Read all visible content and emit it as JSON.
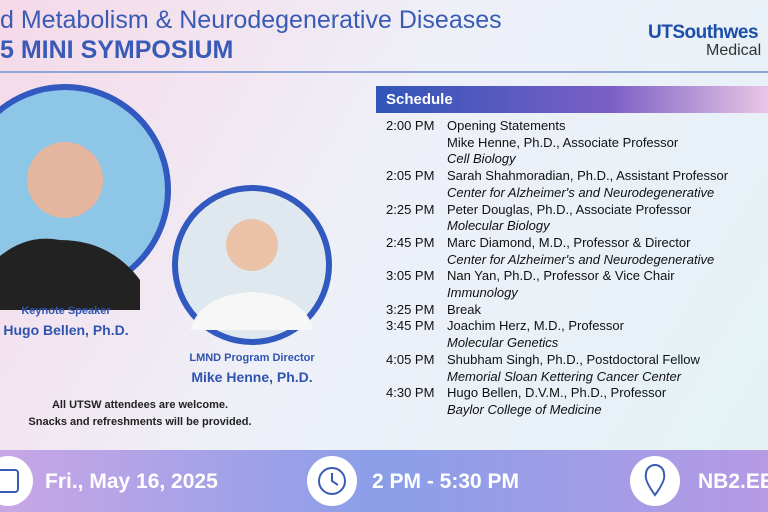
{
  "header": {
    "title_line1": "d Metabolism & Neurodegenerative Diseases",
    "title_line2": "5 MINI SYMPOSIUM",
    "logo_line1": "UTSouthwes",
    "logo_line2": "Medical"
  },
  "speakers": [
    {
      "role": "Keynote Speaker",
      "name": "Hugo Bellen, Ph.D."
    },
    {
      "role": "LMND Program Director",
      "name": "Mike Henne, Ph.D."
    }
  ],
  "notes": [
    "All UTSW attendees are welcome.",
    "Snacks and refreshments will be provided."
  ],
  "schedule": {
    "title": "Schedule",
    "rows": [
      {
        "time": "2:00 PM",
        "lines": [
          "Opening Statements",
          "Mike Henne, Ph.D., Associate Professor"
        ],
        "affiliation": "Cell Biology"
      },
      {
        "time": "2:05 PM",
        "lines": [
          "Sarah Shahmoradian, Ph.D., Assistant Professor"
        ],
        "affiliation": "Center for Alzheimer's and Neurodegenerative"
      },
      {
        "time": "2:25 PM",
        "lines": [
          "Peter Douglas, Ph.D., Associate Professor"
        ],
        "affiliation": "Molecular Biology"
      },
      {
        "time": "2:45 PM",
        "lines": [
          "Marc Diamond, M.D., Professor & Director"
        ],
        "affiliation": "Center for Alzheimer's and Neurodegenerative"
      },
      {
        "time": "3:05 PM",
        "lines": [
          "Nan Yan, Ph.D., Professor & Vice Chair"
        ],
        "affiliation": "Immunology"
      },
      {
        "time": "3:25 PM",
        "lines": [
          "Break"
        ]
      },
      {
        "time": "3:45 PM",
        "lines": [
          "Joachim Herz, M.D., Professor"
        ],
        "affiliation": "Molecular Genetics"
      },
      {
        "time": "4:05 PM",
        "lines": [
          "Shubham Singh, Ph.D., Postdoctoral Fellow"
        ],
        "affiliation": "Memorial Sloan Kettering Cancer Center"
      },
      {
        "time": "4:30 PM",
        "lines": [
          "Hugo Bellen, D.V.M., Ph.D., Professor"
        ],
        "affiliation": "Baylor College of Medicine"
      }
    ]
  },
  "footer": {
    "date": "Fri., May 16, 2025",
    "time": "2 PM - 5:30 PM",
    "location": "NB2.EE"
  }
}
